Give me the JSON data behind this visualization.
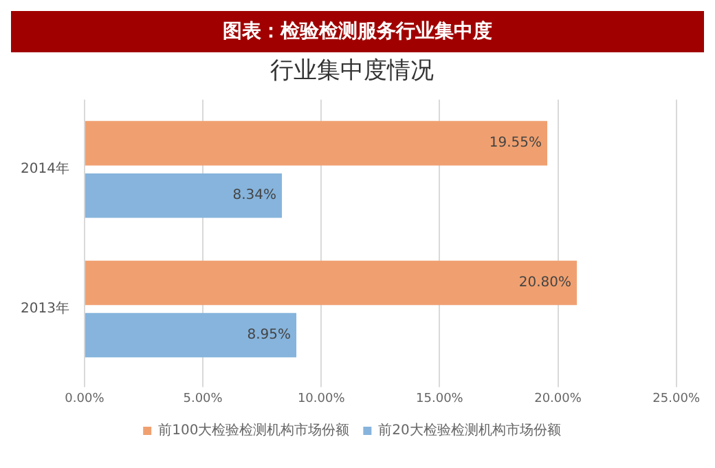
{
  "chart_data": {
    "type": "bar",
    "orientation": "horizontal",
    "title": "图表：检验检测服务行业集中度",
    "subtitle": "行业集中度情况",
    "categories": [
      "2014年",
      "2013年"
    ],
    "series": [
      {
        "name": "前100大检验检测机构市场份额",
        "color": "#f0a070",
        "values": [
          19.55,
          20.8
        ],
        "value_labels": [
          "19.55%",
          "20.80%"
        ]
      },
      {
        "name": "前20大检验检测机构市场份额",
        "color": "#86b4dc",
        "values": [
          8.34,
          8.95
        ],
        "value_labels": [
          "8.34%",
          "8.95%"
        ]
      }
    ],
    "xlim": [
      0,
      25
    ],
    "xticks": [
      {
        "value": 0,
        "label": "0.00%"
      },
      {
        "value": 5,
        "label": "5.00%"
      },
      {
        "value": 10,
        "label": "10.00%"
      },
      {
        "value": 15,
        "label": "15.00%"
      },
      {
        "value": 20,
        "label": "20.00%"
      },
      {
        "value": 25,
        "label": "25.00%"
      }
    ],
    "grid": "x",
    "legend": "bottom"
  }
}
